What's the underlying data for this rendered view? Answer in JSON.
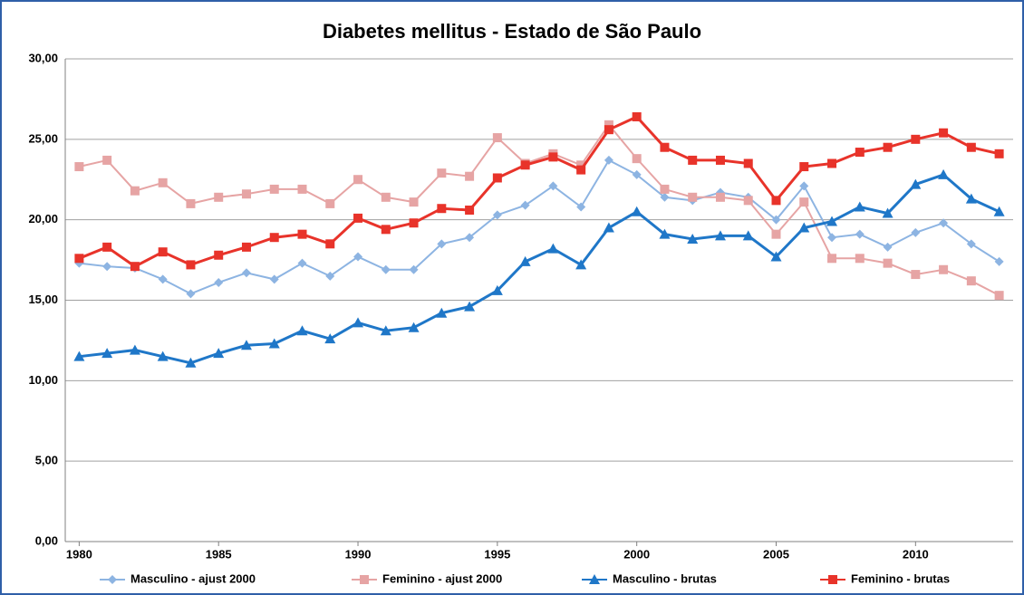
{
  "chart_data": {
    "type": "line",
    "title": "Diabetes mellitus - Estado de São Paulo",
    "x": [
      1980,
      1981,
      1982,
      1983,
      1984,
      1985,
      1986,
      1987,
      1988,
      1989,
      1990,
      1991,
      1992,
      1993,
      1994,
      1995,
      1996,
      1997,
      1998,
      1999,
      2000,
      2001,
      2002,
      2003,
      2004,
      2005,
      2006,
      2007,
      2008,
      2009,
      2010,
      2011,
      2012,
      2013
    ],
    "xlim": [
      1979.5,
      2013.5
    ],
    "xticks": [
      1980,
      1985,
      1990,
      1995,
      2000,
      2005,
      2010
    ],
    "ylim": [
      0,
      30
    ],
    "yticks": [
      {
        "value": 0,
        "label": "0,00"
      },
      {
        "value": 5,
        "label": "5,00"
      },
      {
        "value": 10,
        "label": "10,00"
      },
      {
        "value": 15,
        "label": "15,00"
      },
      {
        "value": 20,
        "label": "20,00"
      },
      {
        "value": 25,
        "label": "25,00"
      },
      {
        "value": 30,
        "label": "30,00"
      }
    ],
    "grid": true,
    "legend": "bottom",
    "series": [
      {
        "name": "Masculino - ajust 2000",
        "color": "#8db4e2",
        "marker": "diamond",
        "values": [
          17.3,
          17.1,
          17.0,
          16.3,
          15.4,
          16.1,
          16.7,
          16.3,
          17.3,
          16.5,
          17.7,
          16.9,
          16.9,
          18.5,
          18.9,
          20.3,
          20.9,
          22.1,
          20.8,
          23.7,
          22.8,
          21.4,
          21.2,
          21.7,
          21.4,
          20.0,
          22.1,
          18.9,
          19.1,
          18.3,
          19.2,
          19.8,
          18.5,
          17.4
        ]
      },
      {
        "name": "Feminino - ajust 2000",
        "color": "#e6a4a4",
        "marker": "square",
        "values": [
          23.3,
          23.7,
          21.8,
          22.3,
          21.0,
          21.4,
          21.6,
          21.9,
          21.9,
          21.0,
          22.5,
          21.4,
          21.1,
          22.9,
          22.7,
          25.1,
          23.5,
          24.1,
          23.4,
          25.9,
          23.8,
          21.9,
          21.4,
          21.4,
          21.2,
          19.1,
          21.1,
          17.6,
          17.6,
          17.3,
          16.6,
          16.9,
          16.2,
          15.3
        ]
      },
      {
        "name": "Masculino - brutas",
        "color": "#1f77c8",
        "marker": "triangle",
        "values": [
          11.5,
          11.7,
          11.9,
          11.5,
          11.1,
          11.7,
          12.2,
          12.3,
          13.1,
          12.6,
          13.6,
          13.1,
          13.3,
          14.2,
          14.6,
          15.6,
          17.4,
          18.2,
          17.2,
          19.5,
          20.5,
          19.1,
          18.8,
          19.0,
          19.0,
          17.7,
          19.5,
          19.9,
          20.8,
          20.4,
          22.2,
          22.8,
          21.3,
          20.5
        ]
      },
      {
        "name": "Feminino - brutas",
        "color": "#e8332a",
        "marker": "square",
        "values": [
          17.6,
          18.3,
          17.1,
          18.0,
          17.2,
          17.8,
          18.3,
          18.9,
          19.1,
          18.5,
          20.1,
          19.4,
          19.8,
          20.7,
          20.6,
          22.6,
          23.4,
          23.9,
          23.1,
          25.6,
          26.4,
          24.5,
          23.7,
          23.7,
          23.5,
          21.2,
          23.3,
          23.5,
          24.2,
          24.5,
          25.0,
          25.4,
          24.5,
          24.1
        ]
      }
    ]
  }
}
